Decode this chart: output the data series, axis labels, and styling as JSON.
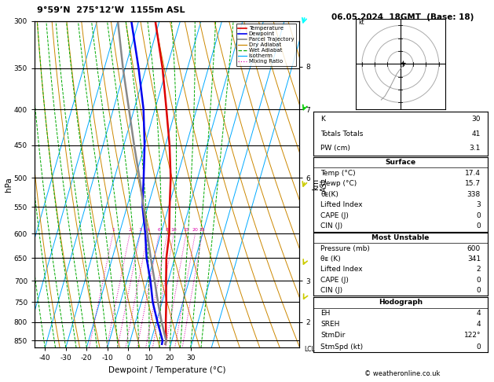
{
  "title_left": "9°59’N  275°12’W  1155m ASL",
  "title_right": "06.05.2024  18GMT  (Base: 18)",
  "xlabel": "Dewpoint / Temperature (°C)",
  "ylabel_left": "hPa",
  "ylabel_right_label": "km\nASL",
  "pressure_levels": [
    300,
    350,
    400,
    450,
    500,
    550,
    600,
    650,
    700,
    750,
    800,
    850
  ],
  "pressure_min": 300,
  "pressure_max": 870,
  "temp_min": -45,
  "temp_max": 37,
  "background_color": "#ffffff",
  "plot_bg": "#ffffff",
  "isotherm_color": "#00aaff",
  "dry_adiabat_color": "#cc8800",
  "wet_adiabat_color": "#00aa00",
  "mixing_ratio_color": "#dd00aa",
  "temp_color": "#dd0000",
  "dewpoint_color": "#0000ee",
  "parcel_color": "#888888",
  "grid_color": "#000000",
  "lcl_pressure": 855,
  "temp_profile": {
    "pressure": [
      860,
      850,
      800,
      750,
      700,
      650,
      600,
      550,
      500,
      450,
      400,
      350,
      300
    ],
    "temp": [
      17.4,
      17.2,
      14.5,
      12.0,
      9.0,
      6.0,
      4.0,
      0.5,
      -3.0,
      -8.0,
      -14.5,
      -22.0,
      -32.0
    ]
  },
  "dewpoint_profile": {
    "pressure": [
      860,
      850,
      800,
      750,
      700,
      650,
      600,
      550,
      500,
      450,
      400,
      350,
      300
    ],
    "temp": [
      15.7,
      15.5,
      10.5,
      5.5,
      1.5,
      -3.5,
      -7.5,
      -12.5,
      -16.0,
      -20.0,
      -25.5,
      -33.5,
      -43.5
    ]
  },
  "parcel_profile": {
    "pressure": [
      860,
      850,
      800,
      750,
      700,
      650,
      600,
      550,
      500,
      450,
      400,
      350,
      300
    ],
    "temp": [
      17.4,
      17.2,
      12.5,
      8.0,
      3.5,
      -1.5,
      -6.5,
      -12.0,
      -18.0,
      -25.0,
      -32.5,
      -41.0,
      -50.0
    ]
  },
  "mixing_ratio_vals": [
    1,
    2,
    3,
    4,
    6,
    8,
    10,
    15,
    20,
    25
  ],
  "skew_factor": 45,
  "stats": {
    "K": 30,
    "Totals_Totals": 41,
    "PW_cm": "3.1",
    "Surface_Temp": "17.4",
    "Surface_Dewp": "15.7",
    "theta_e_K": 338,
    "Lifted_Index": 3,
    "CAPE_J": 0,
    "CIN_J": 0,
    "MU_Pressure_mb": 600,
    "MU_theta_e_K": 341,
    "MU_Lifted_Index": 2,
    "MU_CAPE_J": 0,
    "MU_CIN_J": 0,
    "EH": 4,
    "SREH": 4,
    "StmDir": "122°",
    "StmSpd_kt": 0
  },
  "hodograph_circles": [
    10,
    20,
    30
  ],
  "copyright": "© weatheronline.co.uk",
  "km_ticks": {
    "pressures": [
      348,
      400,
      500,
      700,
      800
    ],
    "labels": [
      "8",
      "7",
      "6",
      "3",
      "2"
    ]
  }
}
